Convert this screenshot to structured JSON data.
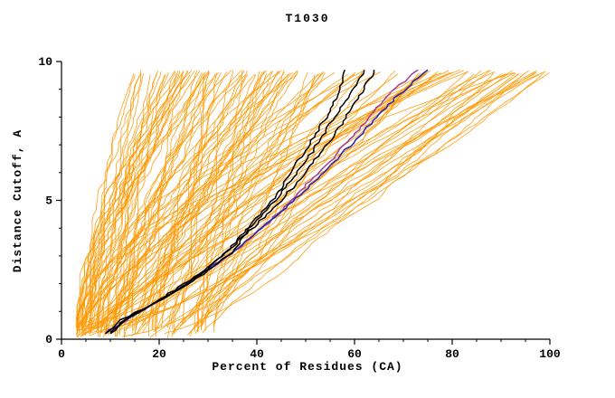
{
  "chart_data": {
    "type": "line",
    "title": "T1030",
    "xlabel": "Percent of Residues (CA)",
    "ylabel": "Distance Cutoff, A",
    "xlim": [
      0,
      100
    ],
    "ylim": [
      0,
      10
    ],
    "xticks": [
      0,
      20,
      40,
      60,
      80,
      100
    ],
    "xticks_minor_step": 5,
    "yticks": [
      0,
      5,
      10
    ],
    "yticks_minor_step": 1,
    "grid": false,
    "legend": "none",
    "background_color": "#ffffff",
    "axis_color": "#000000",
    "ensemble": {
      "description": "orange decoy-model cumulative curves (percent of CA residues under distance cutoff)",
      "count": 130,
      "color": "#ff9800",
      "stroke_width": 0.8,
      "seed": 1234,
      "x_start_range": [
        3,
        33
      ],
      "x_top_clusters": [
        [
          16,
          48
        ],
        [
          40,
          100
        ]
      ],
      "y_start_range": [
        0.05,
        0.55
      ],
      "y_end": 9.7
    },
    "series": [
      {
        "name": "black-model-1",
        "color": "#000000",
        "width": 1.5,
        "points": [
          [
            9,
            0.2
          ],
          [
            12,
            0.7
          ],
          [
            17,
            1.1
          ],
          [
            22,
            1.6
          ],
          [
            27,
            2.1
          ],
          [
            31,
            2.6
          ],
          [
            35,
            3.1
          ],
          [
            38,
            3.9
          ],
          [
            41,
            4.6
          ],
          [
            44,
            5.2
          ],
          [
            47,
            6.0
          ],
          [
            50,
            6.8
          ],
          [
            52,
            7.4
          ],
          [
            55,
            8.2
          ],
          [
            57,
            9.0
          ],
          [
            58,
            9.7
          ]
        ]
      },
      {
        "name": "black-model-2",
        "color": "#000000",
        "width": 1.5,
        "points": [
          [
            10,
            0.2
          ],
          [
            13,
            0.7
          ],
          [
            18,
            1.2
          ],
          [
            24,
            1.8
          ],
          [
            29,
            2.4
          ],
          [
            33,
            3.0
          ],
          [
            36,
            3.6
          ],
          [
            40,
            4.3
          ],
          [
            44,
            5.0
          ],
          [
            47,
            5.7
          ],
          [
            50,
            6.4
          ],
          [
            53,
            7.2
          ],
          [
            56,
            8.0
          ],
          [
            59,
            8.8
          ],
          [
            61,
            9.4
          ],
          [
            62,
            9.7
          ]
        ]
      },
      {
        "name": "black-model-3",
        "color": "#000000",
        "width": 1.5,
        "points": [
          [
            10,
            0.25
          ],
          [
            14,
            0.8
          ],
          [
            19,
            1.3
          ],
          [
            25,
            2.0
          ],
          [
            30,
            2.6
          ],
          [
            34,
            3.2
          ],
          [
            38,
            3.8
          ],
          [
            42,
            4.5
          ],
          [
            46,
            5.2
          ],
          [
            50,
            6.0
          ],
          [
            53,
            6.7
          ],
          [
            56,
            7.4
          ],
          [
            59,
            8.2
          ],
          [
            62,
            9.0
          ],
          [
            64,
            9.7
          ]
        ]
      },
      {
        "name": "magenta-model",
        "color": "#a040a0",
        "width": 1.5,
        "points": [
          [
            10,
            0.25
          ],
          [
            14,
            0.8
          ],
          [
            19,
            1.3
          ],
          [
            25,
            1.9
          ],
          [
            30,
            2.5
          ],
          [
            35,
            3.1
          ],
          [
            39,
            3.7
          ],
          [
            43,
            4.3
          ],
          [
            47,
            5.0
          ],
          [
            51,
            5.7
          ],
          [
            55,
            6.4
          ],
          [
            59,
            7.2
          ],
          [
            63,
            8.0
          ],
          [
            67,
            8.8
          ],
          [
            71,
            9.4
          ],
          [
            73,
            9.7
          ]
        ]
      },
      {
        "name": "blue-model",
        "color": "#2828b4",
        "width": 1.6,
        "points": [
          [
            9,
            0.2
          ],
          [
            13,
            0.7
          ],
          [
            18,
            1.2
          ],
          [
            23,
            1.7
          ],
          [
            28,
            2.3
          ],
          [
            33,
            2.9
          ],
          [
            37,
            3.4
          ],
          [
            41,
            4.0
          ],
          [
            45,
            4.6
          ],
          [
            49,
            5.2
          ],
          [
            53,
            5.9
          ],
          [
            57,
            6.6
          ],
          [
            61,
            7.3
          ],
          [
            65,
            8.1
          ],
          [
            69,
            8.8
          ],
          [
            73,
            9.4
          ],
          [
            75,
            9.7
          ]
        ]
      }
    ]
  }
}
